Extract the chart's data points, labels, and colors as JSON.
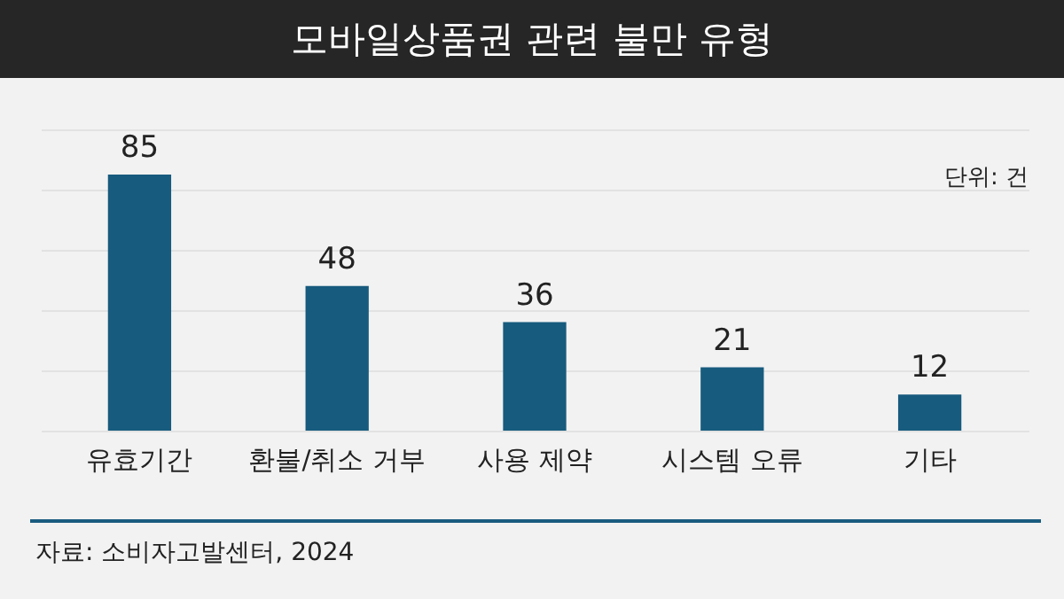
{
  "chart_data": {
    "type": "bar",
    "title": "모바일상품권 관련 불만 유형",
    "categories": [
      "유효기간",
      "환불/취소 거부",
      "사용 제약",
      "시스템 오류",
      "기타"
    ],
    "values": [
      85,
      48,
      36,
      21,
      12
    ],
    "color": "#175b7e",
    "ylim": [
      0,
      100
    ],
    "yticks": [
      {
        "value": 0,
        "label": null
      },
      {
        "value": 20,
        "label": null
      },
      {
        "value": 40,
        "label": null
      },
      {
        "value": 60,
        "label": null
      },
      {
        "value": 80,
        "label": null
      },
      {
        "value": 100,
        "label": null
      }
    ],
    "grid": "y",
    "tick_labels": "x",
    "data_labels": true,
    "annotations": [
      "단위: 건",
      "자료: 소비자고발센터, 2024"
    ]
  }
}
